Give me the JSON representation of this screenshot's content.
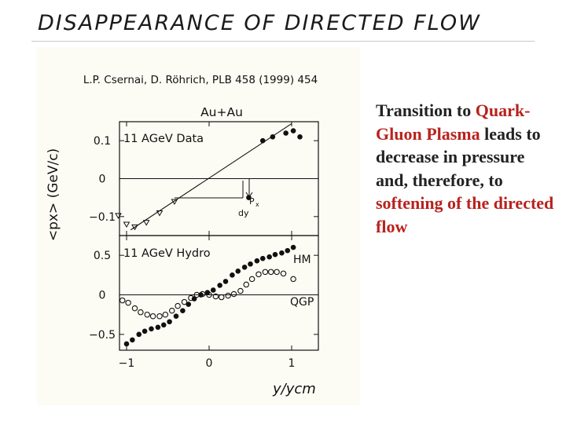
{
  "slide": {
    "title": "DISAPPEARANCE OF DIRECTED FLOW"
  },
  "body_text": {
    "part1": "Transition to",
    "part2_highlight": "Quark-Gluon Plasma",
    "part3": "leads to decrease in pressure and, therefore, to",
    "part4_highlight": "softening of the directed flow"
  },
  "colors": {
    "highlight": "#b8221d",
    "title_text": "#1a1a1a",
    "figure_background": "#fdfcf4"
  },
  "figure": {
    "citation": "L.P. Csernai, D. Röhrich, PLB 458 (1999) 454",
    "system_label": "Au+Au",
    "y_axis_label": "<px> (GeV/c)",
    "x_axis_label": "y/ycm",
    "x_ticks": [
      "−1",
      "0",
      "1"
    ],
    "top_panel": {
      "label": "11 AGeV Data",
      "y_ticks": [
        "0.1",
        "0",
        "−0.1"
      ],
      "annotation_main": "P",
      "annotation_sub": "x",
      "annotation_slope": "dy"
    },
    "bottom_panel": {
      "label": "11 AGeV Hydro",
      "y_ticks": [
        "0.5",
        "0",
        "−0.5"
      ],
      "series_labels": [
        "HM",
        "QGP"
      ]
    }
  },
  "chart_data": [
    {
      "type": "scatter",
      "title": "11 AGeV Data",
      "xlabel": "y/ycm",
      "ylabel": "<px> (GeV/c)",
      "xlim": [
        -1.25,
        1.3
      ],
      "ylim": [
        -0.15,
        0.15
      ],
      "series": [
        {
          "marker": "filled-circle",
          "x": [
            0.48,
            0.65,
            0.77,
            0.93,
            1.02,
            1.1
          ],
          "y": [
            -0.05,
            0.1,
            0.11,
            0.12,
            0.126,
            0.11
          ]
        },
        {
          "marker": "open-triangle",
          "x": [
            -1.1,
            -1.0,
            -0.9,
            -0.76,
            -0.6,
            -0.42
          ],
          "y": [
            -0.097,
            -0.12,
            -0.127,
            -0.115,
            -0.09,
            -0.06
          ]
        }
      ],
      "fit_line": {
        "x": [
          -0.95,
          1.0
        ],
        "y": [
          -0.135,
          0.145
        ]
      }
    },
    {
      "type": "scatter",
      "title": "11 AGeV Hydro",
      "xlabel": "y/ycm",
      "ylabel": "<px> (GeV/c)",
      "xlim": [
        -1.25,
        1.3
      ],
      "ylim": [
        -0.7,
        0.75
      ],
      "series": [
        {
          "name": "HM",
          "marker": "filled-circle",
          "x": [
            -1.0,
            -0.93,
            -0.85,
            -0.78,
            -0.7,
            -0.62,
            -0.55,
            -0.48,
            -0.4,
            -0.32,
            -0.25,
            -0.18,
            -0.1,
            -0.02,
            0.05,
            0.13,
            0.2,
            0.28,
            0.35,
            0.43,
            0.5,
            0.58,
            0.65,
            0.73,
            0.8,
            0.88,
            0.95,
            1.02
          ],
          "y": [
            -0.62,
            -0.57,
            -0.5,
            -0.46,
            -0.43,
            -0.41,
            -0.38,
            -0.34,
            -0.27,
            -0.2,
            -0.12,
            -0.05,
            0.0,
            0.03,
            0.06,
            0.12,
            0.17,
            0.25,
            0.3,
            0.35,
            0.39,
            0.43,
            0.46,
            0.48,
            0.51,
            0.53,
            0.56,
            0.6
          ]
        },
        {
          "name": "QGP",
          "marker": "open-circle",
          "x": [
            -1.05,
            -0.98,
            -0.9,
            -0.83,
            -0.75,
            -0.68,
            -0.6,
            -0.53,
            -0.45,
            -0.38,
            -0.3,
            -0.22,
            -0.15,
            -0.08,
            0.0,
            0.08,
            0.15,
            0.23,
            0.3,
            0.38,
            0.45,
            0.52,
            0.6,
            0.68,
            0.75,
            0.82,
            0.9,
            1.02
          ],
          "y": [
            -0.07,
            -0.1,
            -0.17,
            -0.22,
            -0.25,
            -0.27,
            -0.27,
            -0.25,
            -0.2,
            -0.14,
            -0.09,
            -0.04,
            0.0,
            0.01,
            0.0,
            -0.02,
            -0.03,
            -0.01,
            0.01,
            0.05,
            0.13,
            0.2,
            0.26,
            0.29,
            0.29,
            0.29,
            0.27,
            0.2
          ]
        }
      ]
    }
  ]
}
